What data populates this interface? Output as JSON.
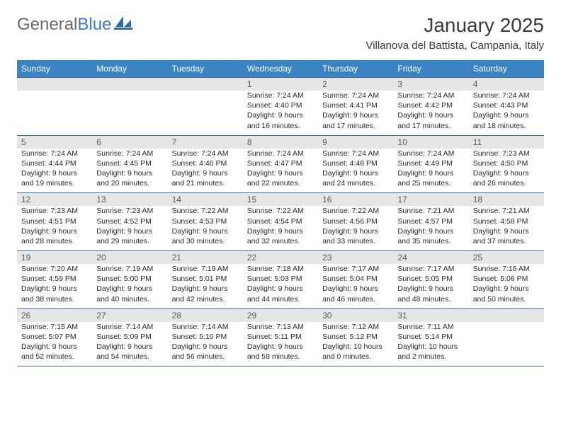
{
  "brand": {
    "part1": "General",
    "part2": "Blue"
  },
  "title": "January 2025",
  "location": "Villanova del Battista, Campania, Italy",
  "colors": {
    "header_bg": "#3a84c4",
    "header_text": "#ffffff",
    "daynum_bg": "#e6e6e6",
    "daynum_text": "#5a5a5a",
    "rule": "#3a6ea5",
    "body_text": "#2a2a2a",
    "title_text": "#3a3a3a",
    "logo_gray": "#6b6b6b",
    "logo_blue": "#3a7cc4"
  },
  "day_names": [
    "Sunday",
    "Monday",
    "Tuesday",
    "Wednesday",
    "Thursday",
    "Friday",
    "Saturday"
  ],
  "weeks": [
    [
      {
        "n": "",
        "lines": []
      },
      {
        "n": "",
        "lines": []
      },
      {
        "n": "",
        "lines": []
      },
      {
        "n": "1",
        "lines": [
          "Sunrise: 7:24 AM",
          "Sunset: 4:40 PM",
          "Daylight: 9 hours",
          "and 16 minutes."
        ]
      },
      {
        "n": "2",
        "lines": [
          "Sunrise: 7:24 AM",
          "Sunset: 4:41 PM",
          "Daylight: 9 hours",
          "and 17 minutes."
        ]
      },
      {
        "n": "3",
        "lines": [
          "Sunrise: 7:24 AM",
          "Sunset: 4:42 PM",
          "Daylight: 9 hours",
          "and 17 minutes."
        ]
      },
      {
        "n": "4",
        "lines": [
          "Sunrise: 7:24 AM",
          "Sunset: 4:43 PM",
          "Daylight: 9 hours",
          "and 18 minutes."
        ]
      }
    ],
    [
      {
        "n": "5",
        "lines": [
          "Sunrise: 7:24 AM",
          "Sunset: 4:44 PM",
          "Daylight: 9 hours",
          "and 19 minutes."
        ]
      },
      {
        "n": "6",
        "lines": [
          "Sunrise: 7:24 AM",
          "Sunset: 4:45 PM",
          "Daylight: 9 hours",
          "and 20 minutes."
        ]
      },
      {
        "n": "7",
        "lines": [
          "Sunrise: 7:24 AM",
          "Sunset: 4:46 PM",
          "Daylight: 9 hours",
          "and 21 minutes."
        ]
      },
      {
        "n": "8",
        "lines": [
          "Sunrise: 7:24 AM",
          "Sunset: 4:47 PM",
          "Daylight: 9 hours",
          "and 22 minutes."
        ]
      },
      {
        "n": "9",
        "lines": [
          "Sunrise: 7:24 AM",
          "Sunset: 4:48 PM",
          "Daylight: 9 hours",
          "and 24 minutes."
        ]
      },
      {
        "n": "10",
        "lines": [
          "Sunrise: 7:24 AM",
          "Sunset: 4:49 PM",
          "Daylight: 9 hours",
          "and 25 minutes."
        ]
      },
      {
        "n": "11",
        "lines": [
          "Sunrise: 7:23 AM",
          "Sunset: 4:50 PM",
          "Daylight: 9 hours",
          "and 26 minutes."
        ]
      }
    ],
    [
      {
        "n": "12",
        "lines": [
          "Sunrise: 7:23 AM",
          "Sunset: 4:51 PM",
          "Daylight: 9 hours",
          "and 28 minutes."
        ]
      },
      {
        "n": "13",
        "lines": [
          "Sunrise: 7:23 AM",
          "Sunset: 4:52 PM",
          "Daylight: 9 hours",
          "and 29 minutes."
        ]
      },
      {
        "n": "14",
        "lines": [
          "Sunrise: 7:22 AM",
          "Sunset: 4:53 PM",
          "Daylight: 9 hours",
          "and 30 minutes."
        ]
      },
      {
        "n": "15",
        "lines": [
          "Sunrise: 7:22 AM",
          "Sunset: 4:54 PM",
          "Daylight: 9 hours",
          "and 32 minutes."
        ]
      },
      {
        "n": "16",
        "lines": [
          "Sunrise: 7:22 AM",
          "Sunset: 4:56 PM",
          "Daylight: 9 hours",
          "and 33 minutes."
        ]
      },
      {
        "n": "17",
        "lines": [
          "Sunrise: 7:21 AM",
          "Sunset: 4:57 PM",
          "Daylight: 9 hours",
          "and 35 minutes."
        ]
      },
      {
        "n": "18",
        "lines": [
          "Sunrise: 7:21 AM",
          "Sunset: 4:58 PM",
          "Daylight: 9 hours",
          "and 37 minutes."
        ]
      }
    ],
    [
      {
        "n": "19",
        "lines": [
          "Sunrise: 7:20 AM",
          "Sunset: 4:59 PM",
          "Daylight: 9 hours",
          "and 38 minutes."
        ]
      },
      {
        "n": "20",
        "lines": [
          "Sunrise: 7:19 AM",
          "Sunset: 5:00 PM",
          "Daylight: 9 hours",
          "and 40 minutes."
        ]
      },
      {
        "n": "21",
        "lines": [
          "Sunrise: 7:19 AM",
          "Sunset: 5:01 PM",
          "Daylight: 9 hours",
          "and 42 minutes."
        ]
      },
      {
        "n": "22",
        "lines": [
          "Sunrise: 7:18 AM",
          "Sunset: 5:03 PM",
          "Daylight: 9 hours",
          "and 44 minutes."
        ]
      },
      {
        "n": "23",
        "lines": [
          "Sunrise: 7:17 AM",
          "Sunset: 5:04 PM",
          "Daylight: 9 hours",
          "and 46 minutes."
        ]
      },
      {
        "n": "24",
        "lines": [
          "Sunrise: 7:17 AM",
          "Sunset: 5:05 PM",
          "Daylight: 9 hours",
          "and 48 minutes."
        ]
      },
      {
        "n": "25",
        "lines": [
          "Sunrise: 7:16 AM",
          "Sunset: 5:06 PM",
          "Daylight: 9 hours",
          "and 50 minutes."
        ]
      }
    ],
    [
      {
        "n": "26",
        "lines": [
          "Sunrise: 7:15 AM",
          "Sunset: 5:07 PM",
          "Daylight: 9 hours",
          "and 52 minutes."
        ]
      },
      {
        "n": "27",
        "lines": [
          "Sunrise: 7:14 AM",
          "Sunset: 5:09 PM",
          "Daylight: 9 hours",
          "and 54 minutes."
        ]
      },
      {
        "n": "28",
        "lines": [
          "Sunrise: 7:14 AM",
          "Sunset: 5:10 PM",
          "Daylight: 9 hours",
          "and 56 minutes."
        ]
      },
      {
        "n": "29",
        "lines": [
          "Sunrise: 7:13 AM",
          "Sunset: 5:11 PM",
          "Daylight: 9 hours",
          "and 58 minutes."
        ]
      },
      {
        "n": "30",
        "lines": [
          "Sunrise: 7:12 AM",
          "Sunset: 5:12 PM",
          "Daylight: 10 hours",
          "and 0 minutes."
        ]
      },
      {
        "n": "31",
        "lines": [
          "Sunrise: 7:11 AM",
          "Sunset: 5:14 PM",
          "Daylight: 10 hours",
          "and 2 minutes."
        ]
      },
      {
        "n": "",
        "lines": []
      }
    ]
  ]
}
